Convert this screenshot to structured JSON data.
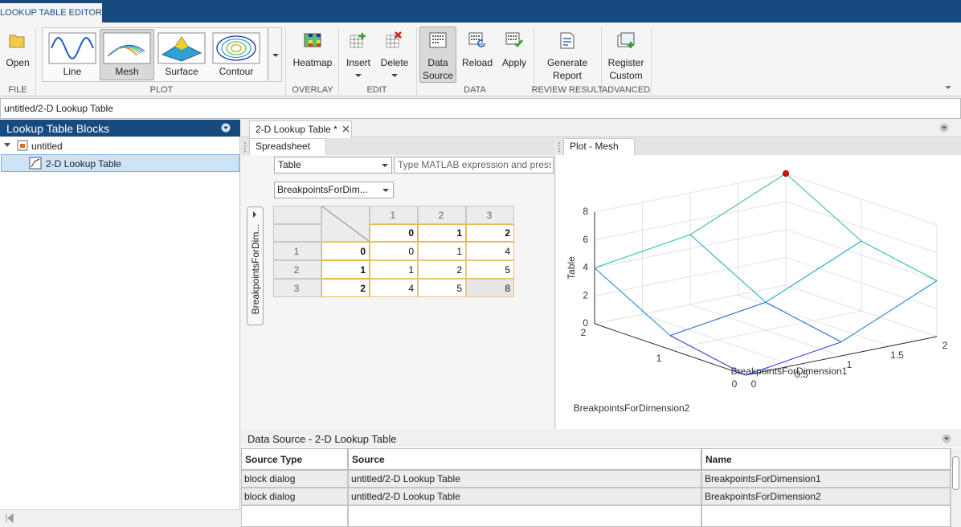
{
  "window": {
    "title": "LOOKUP TABLE EDITOR"
  },
  "toolstrip": {
    "sections": [
      {
        "label": "FILE",
        "buttons": [
          "Open"
        ]
      },
      {
        "label": "PLOT",
        "buttons": [
          "Line",
          "Mesh",
          "Surface",
          "Contour"
        ]
      },
      {
        "label": "OVERLAY",
        "buttons": [
          "Heatmap"
        ]
      },
      {
        "label": "EDIT",
        "buttons": [
          "Insert",
          "Delete"
        ]
      },
      {
        "label": "DATA",
        "buttons": [
          "Data Source",
          "Reload",
          "Apply"
        ]
      },
      {
        "label": "REVIEW RESULT",
        "buttons": [
          "Generate Report"
        ]
      },
      {
        "label": "ADVANCED",
        "buttons": [
          "Register Custom"
        ]
      }
    ]
  },
  "address": "untitled/2-D Lookup Table",
  "blocks_panel": {
    "title": "Lookup Table Blocks",
    "tree": {
      "root": "untitled",
      "child": "2-D Lookup Table"
    }
  },
  "document_tab": "2-D Lookup Table *",
  "spreadsheet": {
    "tab": "Spreadsheet",
    "data_dropdown": "Table",
    "expression_placeholder": "Type MATLAB expression and press",
    "breakpoint_dropdown": "BreakpointsForDim...",
    "row_breakpoint_button": "BreakpointsForDim...",
    "column_headers": [
      1,
      2,
      3
    ],
    "row_headers": [
      1,
      2,
      3
    ],
    "column_breakpoints": [
      0,
      1,
      2
    ],
    "row_breakpoints": [
      0,
      1,
      2
    ],
    "table": [
      [
        0,
        1,
        4
      ],
      [
        1,
        2,
        5
      ],
      [
        4,
        5,
        8
      ]
    ]
  },
  "plot": {
    "tab": "Plot - Mesh",
    "type": "mesh",
    "xlabel": "BreakpointsForDimension1",
    "ylabel": "BreakpointsForDimension2",
    "zlabel": "Table",
    "xlim": [
      0,
      2
    ],
    "ylim": [
      0,
      2
    ],
    "zlim": [
      0,
      8
    ],
    "xticks": [
      0,
      0.5,
      1,
      1.5,
      2
    ],
    "yticks": [
      0,
      1,
      2
    ],
    "zticks": [
      0,
      2,
      4,
      6,
      8
    ]
  },
  "data_source": {
    "title": "Data Source - 2-D Lookup Table",
    "columns": [
      "Source Type",
      "Source",
      "Name"
    ],
    "rows": [
      [
        "block dialog",
        "untitled/2-D Lookup Table",
        "BreakpointsForDimension1"
      ],
      [
        "block dialog",
        "untitled/2-D Lookup Table",
        "BreakpointsForDimension2"
      ]
    ]
  }
}
